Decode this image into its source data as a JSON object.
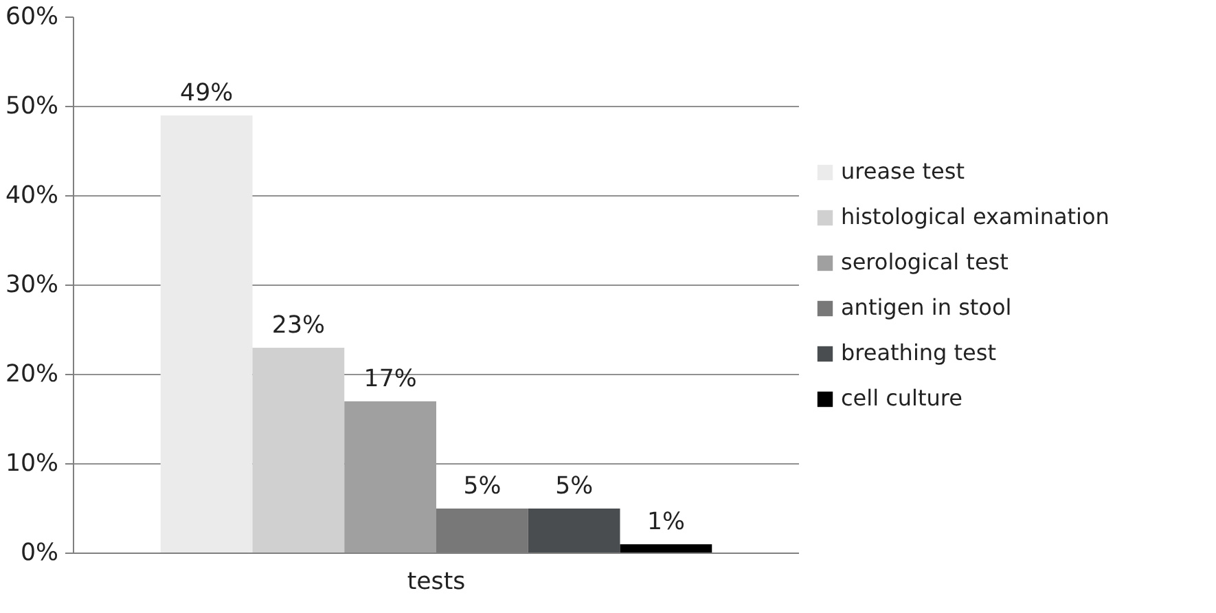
{
  "chart_data": {
    "type": "bar",
    "categories": [
      "tests"
    ],
    "series": [
      {
        "name": "urease test",
        "color": "#ebebeb",
        "values": [
          49
        ],
        "value_labels": [
          "49%"
        ]
      },
      {
        "name": "histological examination",
        "color": "#d0d0d0",
        "values": [
          23
        ],
        "value_labels": [
          "23%"
        ]
      },
      {
        "name": "serological test",
        "color": "#a0a0a0",
        "values": [
          17
        ],
        "value_labels": [
          "17%"
        ]
      },
      {
        "name": "antigen in stool",
        "color": "#787878",
        "values": [
          5
        ],
        "value_labels": [
          "5%"
        ]
      },
      {
        "name": "breathing test",
        "color": "#4a4d50",
        "values": [
          5
        ],
        "value_labels": [
          "5%"
        ]
      },
      {
        "name": "cell culture",
        "color": "#000000",
        "values": [
          1
        ],
        "value_labels": [
          "1%"
        ]
      }
    ],
    "ylim": [
      0,
      60
    ],
    "yticks": [
      {
        "value": 0,
        "label": "0%"
      },
      {
        "value": 10,
        "label": "10%"
      },
      {
        "value": 20,
        "label": "20%"
      },
      {
        "value": 30,
        "label": "30%"
      },
      {
        "value": 40,
        "label": "40%"
      },
      {
        "value": 50,
        "label": "50%"
      },
      {
        "value": 60,
        "label": "60%"
      }
    ],
    "grid": "y",
    "legend": "right"
  }
}
